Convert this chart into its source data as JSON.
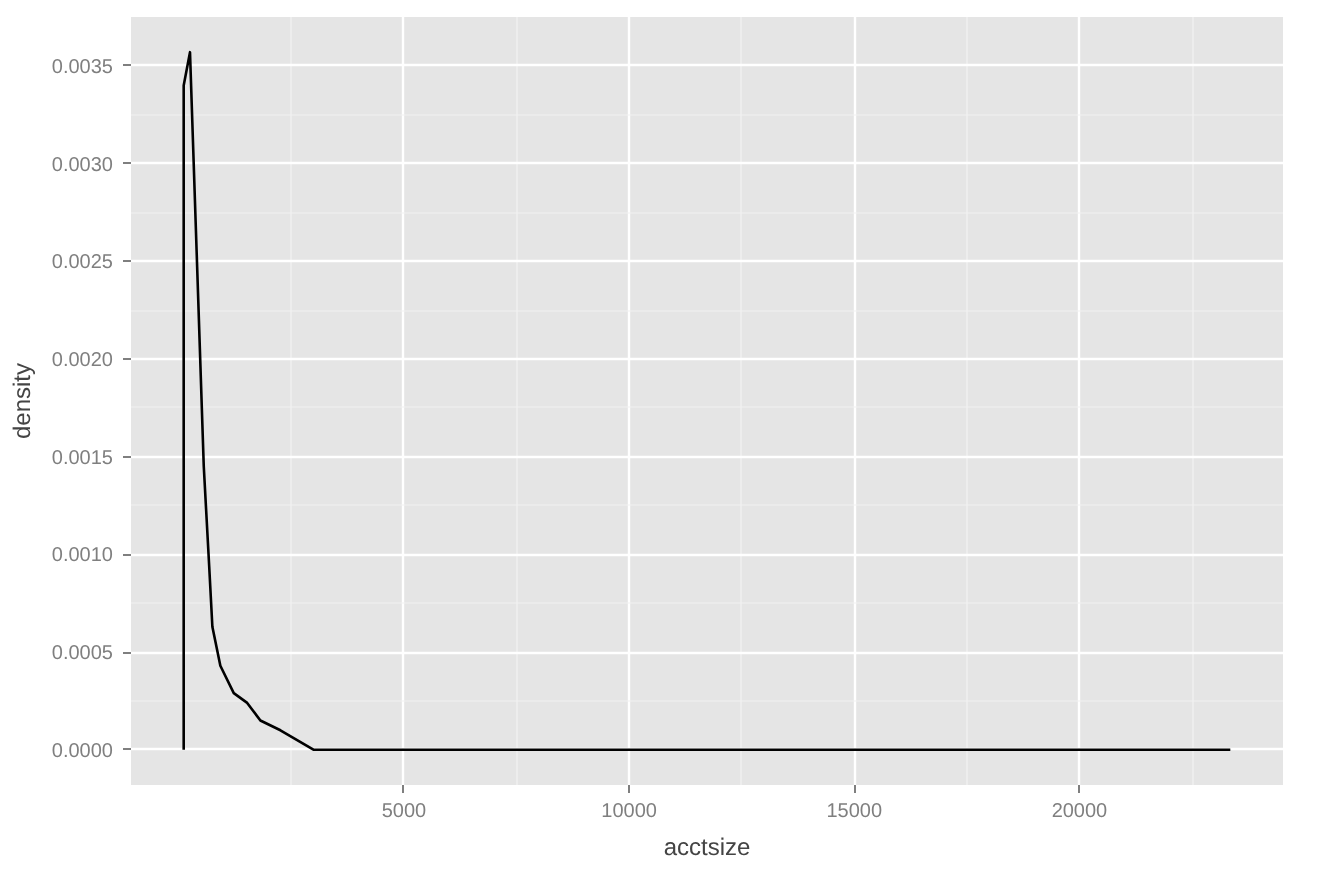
{
  "chart_data": {
    "type": "line",
    "xlabel": "acctsize",
    "ylabel": "density",
    "x": [
      110,
      110,
      250,
      409,
      556,
      676,
      747,
      924,
      1222,
      1520,
      1813,
      2258,
      3000,
      3742,
      23350
    ],
    "series": [
      {
        "color": "#000000",
        "values": [
          0,
          0.0034,
          0.00357,
          0.00247,
          0.00145,
          0.00094,
          0.00063,
          0.00043,
          0.00029,
          0.00024,
          0.00015,
          0.0001,
          0,
          0,
          0
        ]
      }
    ],
    "xlim": [
      -1060,
      24520
    ],
    "ylim": [
      -0.00018,
      0.00375
    ],
    "xticks": [
      5000,
      10000,
      15000,
      20000
    ],
    "yticks": [
      {
        "value": 0,
        "label": "0.0000"
      },
      {
        "value": 0.0005,
        "label": "0.0005"
      },
      {
        "value": 0.001,
        "label": "0.0010"
      },
      {
        "value": 0.0015,
        "label": "0.0015"
      },
      {
        "value": 0.002,
        "label": "0.0020"
      },
      {
        "value": 0.0025,
        "label": "0.0025"
      },
      {
        "value": 0.003,
        "label": "0.0030"
      },
      {
        "value": 0.0035,
        "label": "0.0035"
      }
    ],
    "grid": true,
    "marker": "none",
    "line_style": "solid"
  }
}
